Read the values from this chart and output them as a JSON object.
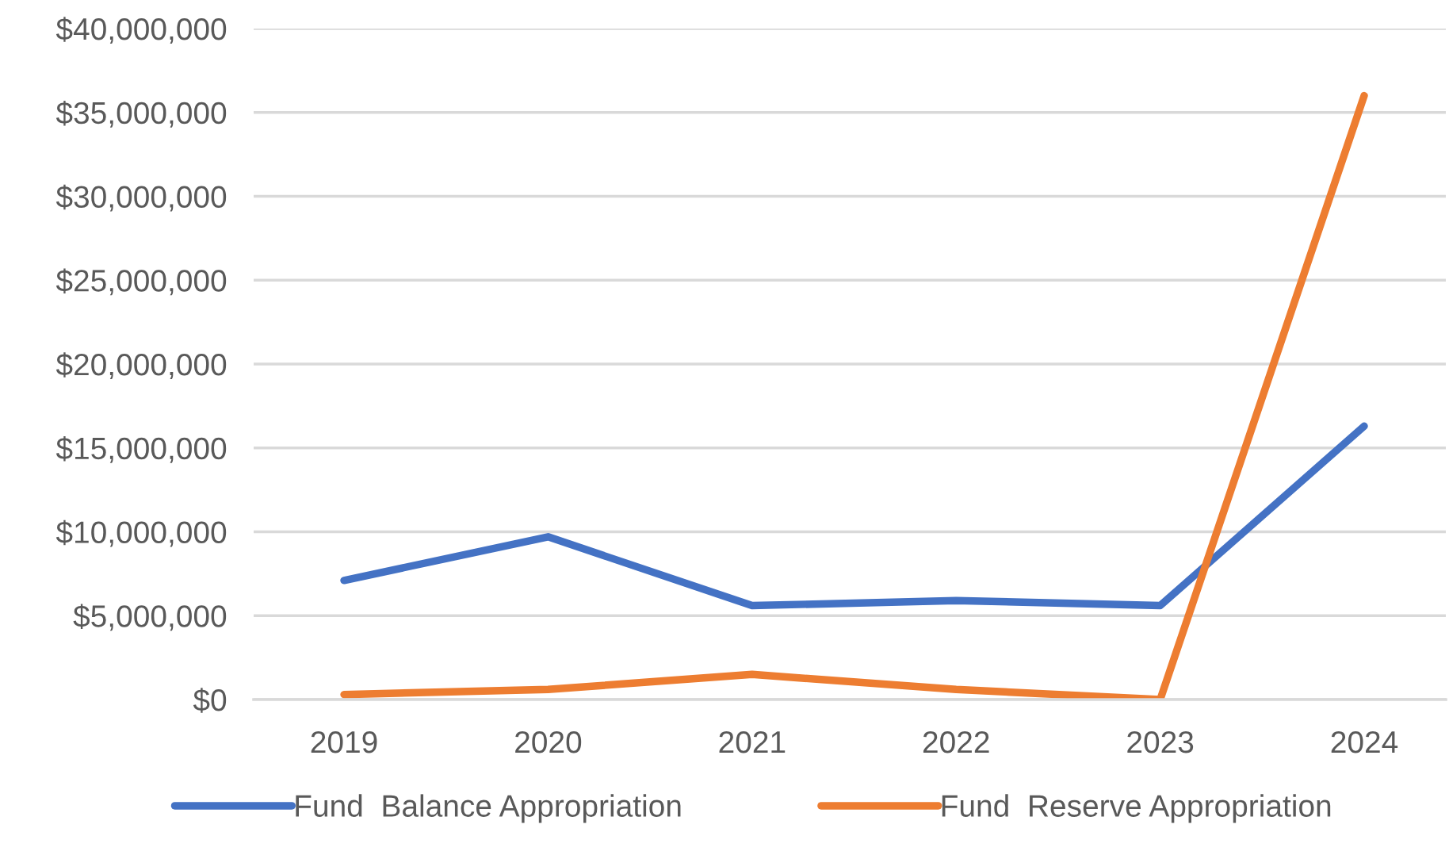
{
  "chart_data": {
    "type": "line",
    "categories": [
      "2019",
      "2020",
      "2021",
      "2022",
      "2023",
      "2024"
    ],
    "series": [
      {
        "name": "Fund  Balance Appropriation",
        "color": "#4472c4",
        "values": [
          7100000,
          9700000,
          5600000,
          5900000,
          5600000,
          16300000
        ]
      },
      {
        "name": "Fund  Reserve Appropriation",
        "color": "#ed7d31",
        "values": [
          300000,
          600000,
          1500000,
          600000,
          0,
          36000000
        ]
      }
    ],
    "ylim": [
      0,
      40000000
    ],
    "yticks": [
      {
        "value": 0,
        "label": "$0"
      },
      {
        "value": 5000000,
        "label": "$5,000,000"
      },
      {
        "value": 10000000,
        "label": "$10,000,000"
      },
      {
        "value": 15000000,
        "label": "$15,000,000"
      },
      {
        "value": 20000000,
        "label": "$20,000,000"
      },
      {
        "value": 25000000,
        "label": "$25,000,000"
      },
      {
        "value": 30000000,
        "label": "$30,000,000"
      },
      {
        "value": 35000000,
        "label": "$35,000,000"
      },
      {
        "value": 40000000,
        "label": "$40,000,000"
      }
    ],
    "grid": "y",
    "legend": "bottom",
    "line_style": "solid"
  }
}
